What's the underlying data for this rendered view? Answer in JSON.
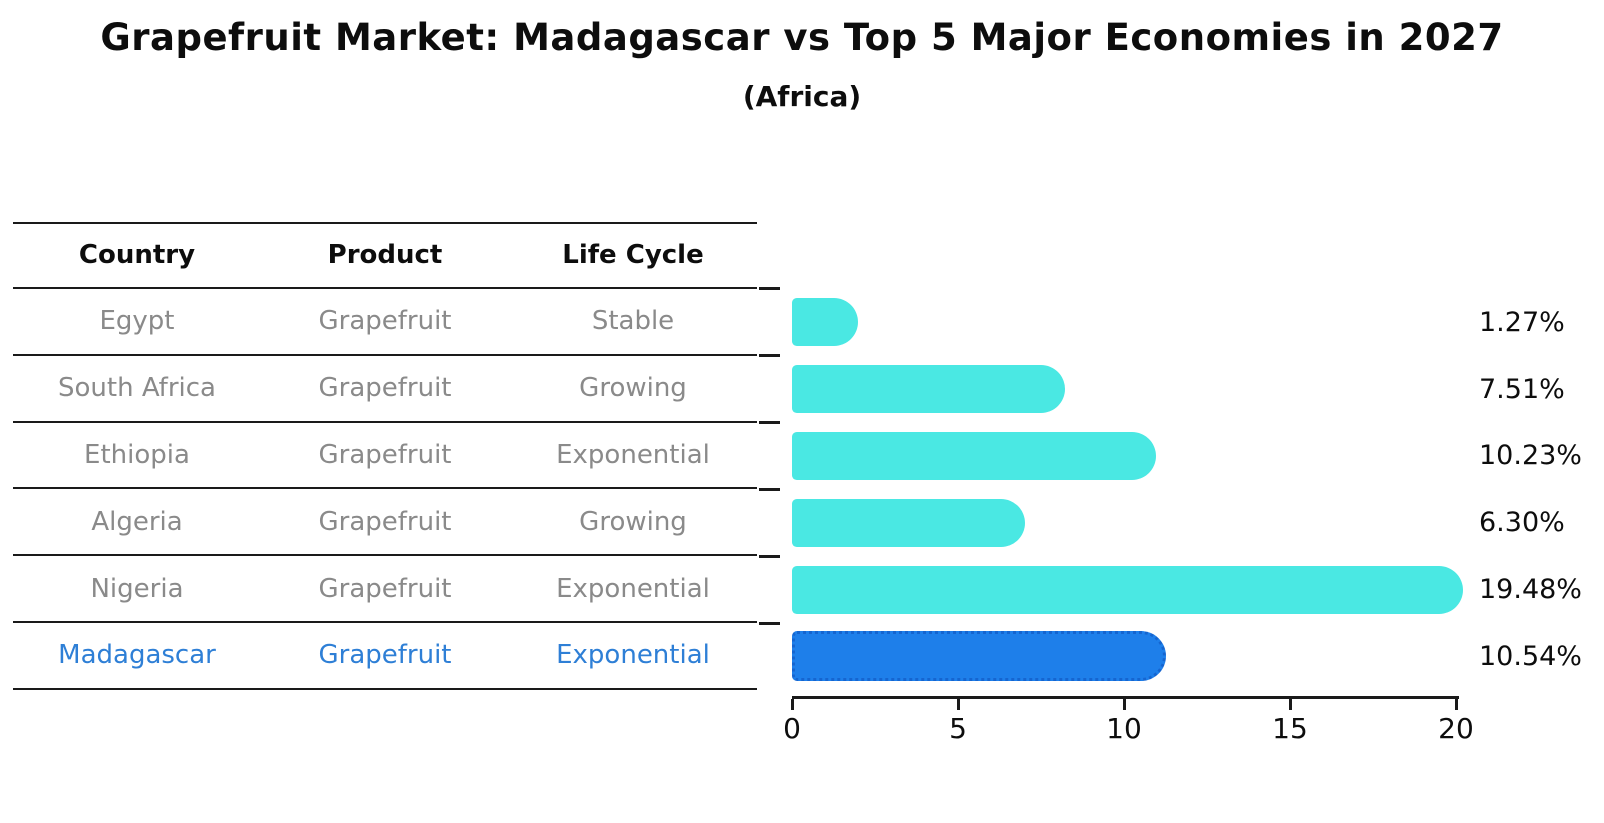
{
  "title": "Grapefruit Market: Madagascar vs Top 5 Major Economies in 2027",
  "subtitle": "(Africa)",
  "table": {
    "columns": [
      "Country",
      "Product",
      "Life Cycle"
    ],
    "rows": [
      {
        "country": "Egypt",
        "product": "Grapefruit",
        "life_cycle": "Stable",
        "highlight": false
      },
      {
        "country": "South Africa",
        "product": "Grapefruit",
        "life_cycle": "Growing",
        "highlight": false
      },
      {
        "country": "Ethiopia",
        "product": "Grapefruit",
        "life_cycle": "Exponential",
        "highlight": false
      },
      {
        "country": "Algeria",
        "product": "Grapefruit",
        "life_cycle": "Growing",
        "highlight": false
      },
      {
        "country": "Nigeria",
        "product": "Grapefruit",
        "life_cycle": "Exponential",
        "highlight": false
      },
      {
        "country": "Madagascar",
        "product": "Grapefruit",
        "life_cycle": "Exponential",
        "highlight": true
      }
    ]
  },
  "chart_data": {
    "type": "bar",
    "orientation": "horizontal",
    "title": "Grapefruit Market: Madagascar vs Top 5 Major Economies in 2027",
    "subtitle": "(Africa)",
    "categories": [
      "Egypt",
      "South Africa",
      "Ethiopia",
      "Algeria",
      "Nigeria",
      "Madagascar"
    ],
    "values": [
      1.27,
      7.51,
      10.23,
      6.3,
      19.48,
      10.54
    ],
    "labels": [
      "1.27%",
      "7.51%",
      "10.23%",
      "6.30%",
      "19.48%",
      "10.54%"
    ],
    "xlabel": "",
    "ylabel": "",
    "xlim": [
      0,
      20
    ],
    "xticks": [
      0,
      5,
      10,
      15,
      20
    ],
    "grid": false,
    "legend": false,
    "highlight_category": "Madagascar",
    "bar_color": "#4AE8E3",
    "highlight_color": "#1E7FEA",
    "highlight_edge_color": "#1565D0"
  },
  "colors": {
    "background": "#FFFFFF",
    "text_primary": "#0D0D0D",
    "text_muted": "#8A8A8A",
    "highlight_text": "#2E7FD6",
    "axis_line": "#1A1A1A"
  }
}
